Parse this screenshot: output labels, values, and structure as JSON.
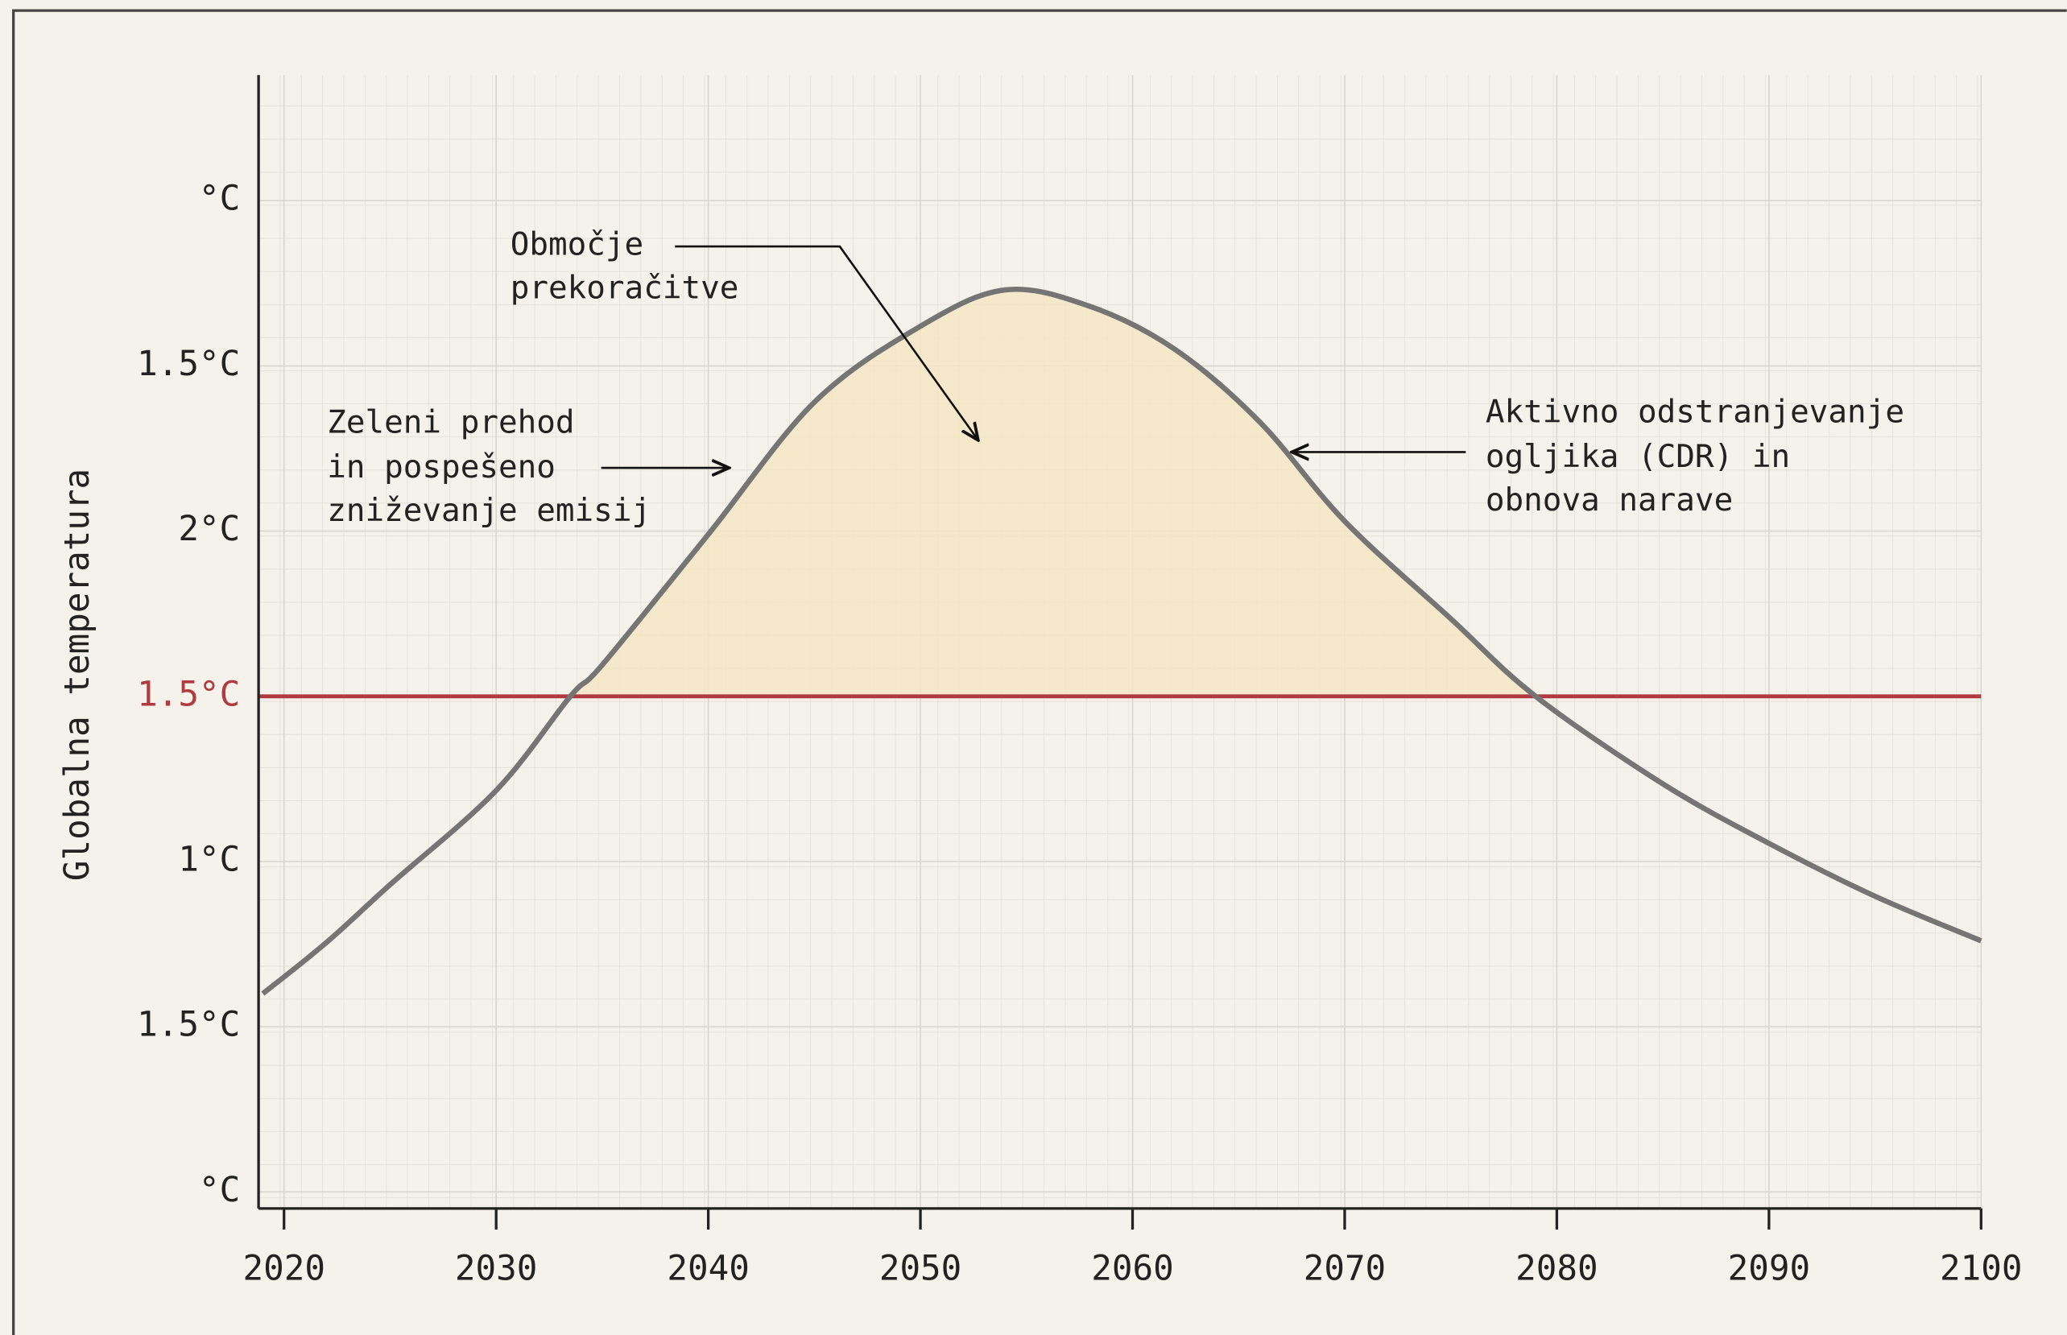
{
  "chart_data": {
    "type": "line",
    "ylabel": "Globalna temperatura",
    "x": [
      2019,
      2022,
      2025,
      2030,
      2033.5,
      2035,
      2040,
      2045,
      2050,
      2054,
      2058,
      2062,
      2066,
      2070,
      2075,
      2079,
      2085,
      2090,
      2095,
      2100
    ],
    "series": [
      {
        "color": "#757575",
        "values": [
          1.2,
          1.51,
          1.86,
          2.43,
          3.0,
          3.19,
          3.98,
          4.78,
          5.24,
          5.46,
          5.36,
          5.1,
          4.66,
          4.06,
          3.47,
          3.0,
          2.47,
          2.11,
          1.79,
          1.52
        ]
      }
    ],
    "threshold": {
      "value": 3,
      "color": "#b03a3f"
    },
    "fill_color": "#f6e6c4",
    "xlim": [
      2018.8,
      2100
    ],
    "xticks": [
      2020,
      2030,
      2040,
      2050,
      2060,
      2070,
      2080,
      2090,
      2100
    ],
    "ylim": [
      -0.1,
      6.76
    ],
    "yticks": [
      {
        "value": 0,
        "label": "°C"
      },
      {
        "value": 1,
        "label": "1.5°C"
      },
      {
        "value": 2,
        "label": "1°C"
      },
      {
        "value": 3,
        "label": "1.5°C"
      },
      {
        "value": 4,
        "label": "2°C"
      },
      {
        "value": 5,
        "label": "1.5°C"
      },
      {
        "value": 6,
        "label": "°C"
      }
    ],
    "grid": true,
    "annotations": [
      {
        "lines": [
          "Območje",
          "prekoračitve"
        ]
      },
      {
        "lines": [
          "Zeleni prehod",
          "in pospešeno",
          "zniževanje emisij"
        ]
      },
      {
        "lines": [
          "Aktivno odstranjevanje",
          "ogljika (CDR) in",
          "obnova narave"
        ]
      }
    ]
  }
}
